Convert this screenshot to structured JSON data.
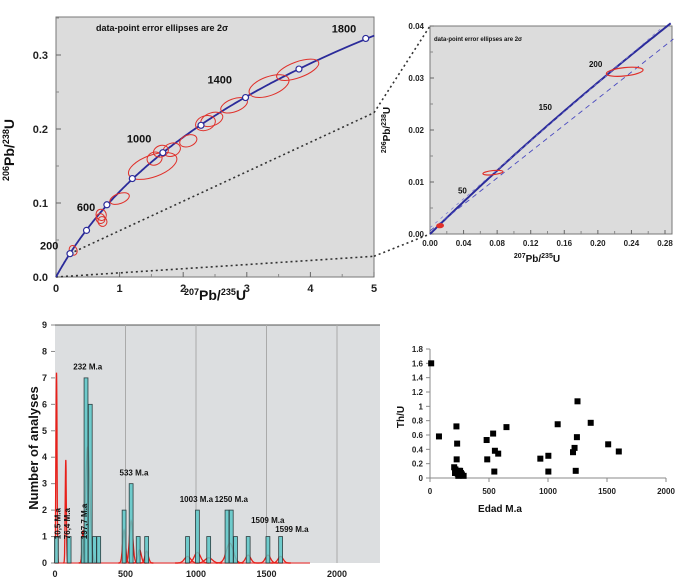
{
  "chart_data": [
    {
      "id": "concordia-main",
      "type": "scatter",
      "title": "",
      "annotation": "data-point error ellipses are 2σ",
      "xlabel": "207Pb/235U",
      "ylabel": "206Pb/238U",
      "xlim": [
        0,
        5
      ],
      "ylim": [
        0,
        0.34
      ],
      "x_ticks": [
        "0",
        "1",
        "2",
        "3",
        "4",
        "5"
      ],
      "y_ticks": [
        "0.0",
        "0.1",
        "0.2",
        "0.3"
      ],
      "concordia_age_labels": [
        {
          "age": "200",
          "x": 0.22,
          "y": 0.0315
        },
        {
          "age": "600",
          "x": 0.8,
          "y": 0.0976
        },
        {
          "age": "1000",
          "x": 1.68,
          "y": 0.168
        },
        {
          "age": "1400",
          "x": 2.98,
          "y": 0.2425
        },
        {
          "age": "1800",
          "x": 4.87,
          "y": 0.3224
        }
      ],
      "concordia_markers": [
        {
          "x": 0.22,
          "y": 0.0315
        },
        {
          "x": 0.48,
          "y": 0.063
        },
        {
          "x": 0.8,
          "y": 0.0976
        },
        {
          "x": 1.2,
          "y": 0.133
        },
        {
          "x": 1.68,
          "y": 0.168
        },
        {
          "x": 2.28,
          "y": 0.205
        },
        {
          "x": 2.98,
          "y": 0.2425
        },
        {
          "x": 3.82,
          "y": 0.281
        },
        {
          "x": 4.87,
          "y": 0.3224
        }
      ],
      "error_ellipses": [
        {
          "x": 0.27,
          "y": 0.036,
          "rx": 0.06,
          "ry": 0.004
        },
        {
          "x": 0.71,
          "y": 0.084,
          "rx": 0.08,
          "ry": 0.005
        },
        {
          "x": 0.7,
          "y": 0.079,
          "rx": 0.07,
          "ry": 0.004
        },
        {
          "x": 0.73,
          "y": 0.075,
          "rx": 0.07,
          "ry": 0.004
        },
        {
          "x": 1.0,
          "y": 0.106,
          "rx": 0.16,
          "ry": 0.004
        },
        {
          "x": 1.52,
          "y": 0.15,
          "rx": 0.4,
          "ry": 0.012
        },
        {
          "x": 1.55,
          "y": 0.16,
          "rx": 0.12,
          "ry": 0.006
        },
        {
          "x": 1.65,
          "y": 0.17,
          "rx": 0.12,
          "ry": 0.005
        },
        {
          "x": 1.82,
          "y": 0.172,
          "rx": 0.14,
          "ry": 0.006
        },
        {
          "x": 2.08,
          "y": 0.184,
          "rx": 0.14,
          "ry": 0.005
        },
        {
          "x": 2.35,
          "y": 0.208,
          "rx": 0.16,
          "ry": 0.007
        },
        {
          "x": 2.45,
          "y": 0.213,
          "rx": 0.18,
          "ry": 0.006
        },
        {
          "x": 2.8,
          "y": 0.232,
          "rx": 0.22,
          "ry": 0.006
        },
        {
          "x": 3.35,
          "y": 0.258,
          "rx": 0.33,
          "ry": 0.01
        },
        {
          "x": 3.8,
          "y": 0.28,
          "rx": 0.35,
          "ry": 0.008
        }
      ],
      "reference_lines": [
        {
          "name": "zoom-upper",
          "from": [
            0.22,
            0.0315
          ],
          "to": [
            5.0,
            0.222
          ]
        },
        {
          "name": "zoom-lower",
          "from": [
            0.0,
            0.0
          ],
          "to": [
            5.0,
            0.028
          ]
        }
      ]
    },
    {
      "id": "concordia-inset",
      "type": "scatter",
      "title": "",
      "annotation": "data-point error ellipses are 2σ",
      "xlabel": "207Pb/235U",
      "ylabel": "206Pb/238U",
      "xlim": [
        0,
        0.29
      ],
      "ylim": [
        0,
        0.04
      ],
      "x_ticks": [
        "0.00",
        "0.04",
        "0.08",
        "0.12",
        "0.16",
        "0.20",
        "0.24",
        "0.28"
      ],
      "y_ticks": [
        "0.00",
        "0.01",
        "0.02",
        "0.03",
        "0.04"
      ],
      "concordia_age_labels": [
        {
          "age": "50",
          "x": 0.05,
          "y": 0.0078
        },
        {
          "age": "150",
          "x": 0.158,
          "y": 0.0235
        },
        {
          "age": "200",
          "x": 0.218,
          "y": 0.0315
        }
      ],
      "error_ellipses": [
        {
          "x": 0.012,
          "y": 0.0016,
          "rx": 0.004,
          "ry": 0.0002
        },
        {
          "x": 0.075,
          "y": 0.0118,
          "rx": 0.012,
          "ry": 0.0004
        },
        {
          "x": 0.232,
          "y": 0.0312,
          "rx": 0.022,
          "ry": 0.0008
        }
      ]
    },
    {
      "id": "age-histogram",
      "type": "bar",
      "title": "",
      "xlabel": "",
      "ylabel": "Number of analyses",
      "xlim": [
        0,
        2250
      ],
      "ylim": [
        0,
        9
      ],
      "x_ticks": [
        "0",
        "500",
        "1000",
        "1500",
        "2000"
      ],
      "y_ticks": [
        "0",
        "1",
        "2",
        "3",
        "4",
        "5",
        "6",
        "7",
        "8",
        "9"
      ],
      "bin_width": 50,
      "bars": [
        {
          "x": 10,
          "count": 1
        },
        {
          "x": 100,
          "count": 1
        },
        {
          "x": 200,
          "count": 1
        },
        {
          "x": 220,
          "count": 7
        },
        {
          "x": 250,
          "count": 6
        },
        {
          "x": 280,
          "count": 1
        },
        {
          "x": 310,
          "count": 1
        },
        {
          "x": 490,
          "count": 2
        },
        {
          "x": 540,
          "count": 3
        },
        {
          "x": 590,
          "count": 1
        },
        {
          "x": 650,
          "count": 1
        },
        {
          "x": 940,
          "count": 1
        },
        {
          "x": 1010,
          "count": 2
        },
        {
          "x": 1090,
          "count": 1
        },
        {
          "x": 1220,
          "count": 2
        },
        {
          "x": 1250,
          "count": 2
        },
        {
          "x": 1280,
          "count": 1
        },
        {
          "x": 1370,
          "count": 1
        },
        {
          "x": 1510,
          "count": 1
        },
        {
          "x": 1600,
          "count": 1
        }
      ],
      "probability_peaks": [
        {
          "x": 10.5,
          "height": 7.2,
          "width": 4
        },
        {
          "x": 76.4,
          "height": 3.9,
          "width": 4
        },
        {
          "x": 197.7,
          "height": 1.2,
          "width": 6
        },
        {
          "x": 232,
          "height": 4.4,
          "width": 16
        },
        {
          "x": 490,
          "height": 1.25,
          "width": 10
        },
        {
          "x": 540,
          "height": 1.6,
          "width": 12
        },
        {
          "x": 600,
          "height": 0.5,
          "width": 12
        },
        {
          "x": 650,
          "height": 0.45,
          "width": 12
        },
        {
          "x": 940,
          "height": 0.25,
          "width": 22
        },
        {
          "x": 1010,
          "height": 0.4,
          "width": 22
        },
        {
          "x": 1090,
          "height": 0.2,
          "width": 25
        },
        {
          "x": 1240,
          "height": 0.75,
          "width": 25
        },
        {
          "x": 1370,
          "height": 0.3,
          "width": 18
        },
        {
          "x": 1510,
          "height": 0.3,
          "width": 18
        },
        {
          "x": 1600,
          "height": 0.25,
          "width": 18
        }
      ],
      "peak_labels": [
        {
          "text": "232 M.a",
          "x": 232,
          "y": 7.2,
          "rotated": false
        },
        {
          "text": "533 M.a",
          "x": 560,
          "y": 3.2,
          "rotated": false
        },
        {
          "text": "1003 M.a",
          "x": 1003,
          "y": 2.2,
          "rotated": false
        },
        {
          "text": "1250 M.a",
          "x": 1250,
          "y": 2.2,
          "rotated": false
        },
        {
          "text": "1509 M.a",
          "x": 1509,
          "y": 1.4,
          "rotated": false
        },
        {
          "text": "1599 M.a",
          "x": 1680,
          "y": 1.05,
          "rotated": false
        },
        {
          "text": "10,5 M.a",
          "x": 10.5,
          "y": 0.9,
          "rotated": true
        },
        {
          "text": "76,4 M.a",
          "x": 76.4,
          "y": 0.9,
          "rotated": true
        },
        {
          "text": "197,7 M.a",
          "x": 197.7,
          "y": 0.9,
          "rotated": true
        }
      ],
      "grid": "vertical"
    },
    {
      "id": "thu-scatter",
      "type": "scatter",
      "title": "",
      "xlabel": "Edad M.a",
      "ylabel": "Th/U",
      "xlim": [
        0,
        2000
      ],
      "ylim": [
        0,
        1.8
      ],
      "x_ticks": [
        "0",
        "500",
        "1000",
        "1500",
        "2000"
      ],
      "y_ticks": [
        "0",
        "0.2",
        "0.4",
        "0.6",
        "0.8",
        "1",
        "1.2",
        "1.4",
        "1.6",
        "1.8"
      ],
      "points": [
        [
          10,
          1.6
        ],
        [
          76,
          0.58
        ],
        [
          224,
          0.72
        ],
        [
          230,
          0.48
        ],
        [
          226,
          0.26
        ],
        [
          205,
          0.15
        ],
        [
          215,
          0.12
        ],
        [
          220,
          0.1
        ],
        [
          228,
          0.08
        ],
        [
          235,
          0.06
        ],
        [
          245,
          0.1
        ],
        [
          255,
          0.1
        ],
        [
          262,
          0.07
        ],
        [
          270,
          0.05
        ],
        [
          285,
          0.03
        ],
        [
          240,
          0.03
        ],
        [
          250,
          0.04
        ],
        [
          212,
          0.07
        ],
        [
          480,
          0.53
        ],
        [
          485,
          0.26
        ],
        [
          535,
          0.62
        ],
        [
          550,
          0.38
        ],
        [
          545,
          0.09
        ],
        [
          578,
          0.34
        ],
        [
          648,
          0.71
        ],
        [
          935,
          0.27
        ],
        [
          1003,
          0.31
        ],
        [
          1003,
          0.09
        ],
        [
          1082,
          0.75
        ],
        [
          1212,
          0.36
        ],
        [
          1225,
          0.42
        ],
        [
          1235,
          0.1
        ],
        [
          1245,
          0.57
        ],
        [
          1250,
          1.07
        ],
        [
          1362,
          0.77
        ],
        [
          1510,
          0.47
        ],
        [
          1600,
          0.37
        ]
      ]
    }
  ]
}
